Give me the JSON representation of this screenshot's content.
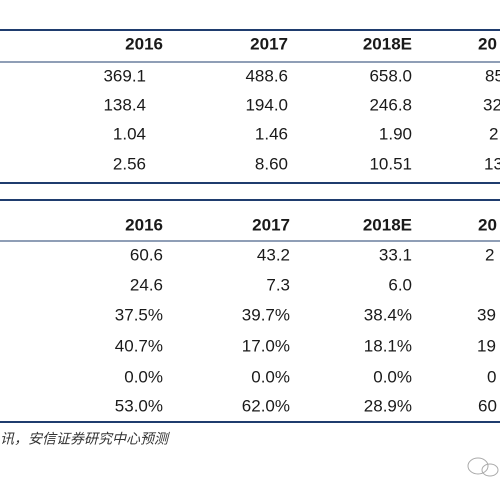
{
  "tables": [
    {
      "header": [
        "2016",
        "2017",
        "2018E",
        "20"
      ],
      "rows": [
        [
          "369.1",
          "488.6",
          "658.0",
          "85"
        ],
        [
          "138.4",
          "194.0",
          "246.8",
          "32"
        ],
        [
          "1.04",
          "1.46",
          "1.90",
          "2"
        ],
        [
          "2.56",
          "8.60",
          "10.51",
          "13"
        ]
      ]
    },
    {
      "header": [
        "2016",
        "2017",
        "2018E",
        "20"
      ],
      "rows": [
        [
          "60.6",
          "43.2",
          "33.1",
          "2"
        ],
        [
          "24.6",
          "7.3",
          "6.0",
          null
        ],
        [
          "37.5%",
          "39.7%",
          "38.4%",
          "39"
        ],
        [
          "40.7%",
          "17.0%",
          "18.1%",
          "19"
        ],
        [
          "0.0%",
          "0.0%",
          "0.0%",
          "0"
        ],
        [
          "53.0%",
          "62.0%",
          "28.9%",
          "60"
        ]
      ]
    }
  ],
  "footer": "讯，安信证券研究中心预测"
}
